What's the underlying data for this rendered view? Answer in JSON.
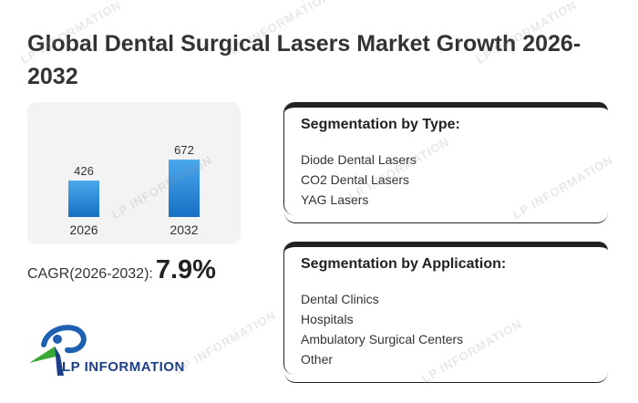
{
  "title": "Global Dental Surgical Lasers Market Growth 2026-2032",
  "chart_data": {
    "type": "bar",
    "categories": [
      "2026",
      "2032"
    ],
    "values": [
      426,
      672
    ],
    "title": "",
    "xlabel": "",
    "ylabel": "",
    "ylim": [
      0,
      672
    ],
    "grid": false,
    "legend": "none",
    "bar_color": "#1f7fd0"
  },
  "cagr": {
    "label": "CAGR(2026-2032):",
    "value": "7.9%"
  },
  "logo": {
    "text": "LP INFORMATION",
    "icon": "lp-information-logo-icon"
  },
  "segmentation_type": {
    "title": "Segmentation by Type:",
    "items": [
      "Diode Dental Lasers",
      "CO2 Dental Lasers",
      "YAG Lasers"
    ]
  },
  "segmentation_application": {
    "title": "Segmentation by Application:",
    "items": [
      "Dental Clinics",
      "Hospitals",
      "Ambulatory Surgical Centers",
      "Other"
    ]
  },
  "watermark": {
    "text": "LP INFORMATION"
  },
  "colors": {
    "bar": "#1f7fd0",
    "logo_blue": "#1d3f8a",
    "logo_green": "#3aa935",
    "panel_border": "#222222"
  }
}
